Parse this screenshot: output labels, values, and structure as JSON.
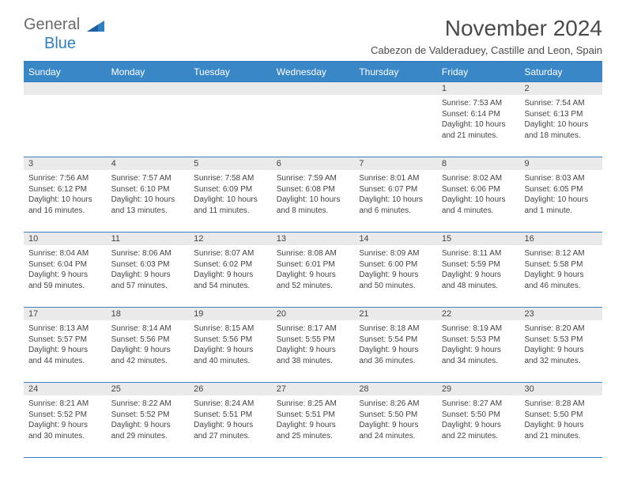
{
  "logo": {
    "text1": "General",
    "text2": "Blue"
  },
  "colors": {
    "headerBar": "#3a87c7",
    "borderBlue": "#3a7fbf",
    "dayStrip": "#eaeaea",
    "logoBlue": "#2f7fc2",
    "textGrey": "#4a4a4a"
  },
  "title": "November 2024",
  "subtitle": "Cabezon de Valderaduey, Castille and Leon, Spain",
  "weekdays": [
    "Sunday",
    "Monday",
    "Tuesday",
    "Wednesday",
    "Thursday",
    "Friday",
    "Saturday"
  ],
  "weeks": [
    {
      "nums": [
        "",
        "",
        "",
        "",
        "",
        "1",
        "2"
      ],
      "cells": [
        [],
        [],
        [],
        [],
        [],
        [
          "Sunrise: 7:53 AM",
          "Sunset: 6:14 PM",
          "Daylight: 10 hours",
          "and 21 minutes."
        ],
        [
          "Sunrise: 7:54 AM",
          "Sunset: 6:13 PM",
          "Daylight: 10 hours",
          "and 18 minutes."
        ]
      ]
    },
    {
      "nums": [
        "3",
        "4",
        "5",
        "6",
        "7",
        "8",
        "9"
      ],
      "cells": [
        [
          "Sunrise: 7:56 AM",
          "Sunset: 6:12 PM",
          "Daylight: 10 hours",
          "and 16 minutes."
        ],
        [
          "Sunrise: 7:57 AM",
          "Sunset: 6:10 PM",
          "Daylight: 10 hours",
          "and 13 minutes."
        ],
        [
          "Sunrise: 7:58 AM",
          "Sunset: 6:09 PM",
          "Daylight: 10 hours",
          "and 11 minutes."
        ],
        [
          "Sunrise: 7:59 AM",
          "Sunset: 6:08 PM",
          "Daylight: 10 hours",
          "and 8 minutes."
        ],
        [
          "Sunrise: 8:01 AM",
          "Sunset: 6:07 PM",
          "Daylight: 10 hours",
          "and 6 minutes."
        ],
        [
          "Sunrise: 8:02 AM",
          "Sunset: 6:06 PM",
          "Daylight: 10 hours",
          "and 4 minutes."
        ],
        [
          "Sunrise: 8:03 AM",
          "Sunset: 6:05 PM",
          "Daylight: 10 hours",
          "and 1 minute."
        ]
      ]
    },
    {
      "nums": [
        "10",
        "11",
        "12",
        "13",
        "14",
        "15",
        "16"
      ],
      "cells": [
        [
          "Sunrise: 8:04 AM",
          "Sunset: 6:04 PM",
          "Daylight: 9 hours",
          "and 59 minutes."
        ],
        [
          "Sunrise: 8:06 AM",
          "Sunset: 6:03 PM",
          "Daylight: 9 hours",
          "and 57 minutes."
        ],
        [
          "Sunrise: 8:07 AM",
          "Sunset: 6:02 PM",
          "Daylight: 9 hours",
          "and 54 minutes."
        ],
        [
          "Sunrise: 8:08 AM",
          "Sunset: 6:01 PM",
          "Daylight: 9 hours",
          "and 52 minutes."
        ],
        [
          "Sunrise: 8:09 AM",
          "Sunset: 6:00 PM",
          "Daylight: 9 hours",
          "and 50 minutes."
        ],
        [
          "Sunrise: 8:11 AM",
          "Sunset: 5:59 PM",
          "Daylight: 9 hours",
          "and 48 minutes."
        ],
        [
          "Sunrise: 8:12 AM",
          "Sunset: 5:58 PM",
          "Daylight: 9 hours",
          "and 46 minutes."
        ]
      ]
    },
    {
      "nums": [
        "17",
        "18",
        "19",
        "20",
        "21",
        "22",
        "23"
      ],
      "cells": [
        [
          "Sunrise: 8:13 AM",
          "Sunset: 5:57 PM",
          "Daylight: 9 hours",
          "and 44 minutes."
        ],
        [
          "Sunrise: 8:14 AM",
          "Sunset: 5:56 PM",
          "Daylight: 9 hours",
          "and 42 minutes."
        ],
        [
          "Sunrise: 8:15 AM",
          "Sunset: 5:56 PM",
          "Daylight: 9 hours",
          "and 40 minutes."
        ],
        [
          "Sunrise: 8:17 AM",
          "Sunset: 5:55 PM",
          "Daylight: 9 hours",
          "and 38 minutes."
        ],
        [
          "Sunrise: 8:18 AM",
          "Sunset: 5:54 PM",
          "Daylight: 9 hours",
          "and 36 minutes."
        ],
        [
          "Sunrise: 8:19 AM",
          "Sunset: 5:53 PM",
          "Daylight: 9 hours",
          "and 34 minutes."
        ],
        [
          "Sunrise: 8:20 AM",
          "Sunset: 5:53 PM",
          "Daylight: 9 hours",
          "and 32 minutes."
        ]
      ]
    },
    {
      "nums": [
        "24",
        "25",
        "26",
        "27",
        "28",
        "29",
        "30"
      ],
      "cells": [
        [
          "Sunrise: 8:21 AM",
          "Sunset: 5:52 PM",
          "Daylight: 9 hours",
          "and 30 minutes."
        ],
        [
          "Sunrise: 8:22 AM",
          "Sunset: 5:52 PM",
          "Daylight: 9 hours",
          "and 29 minutes."
        ],
        [
          "Sunrise: 8:24 AM",
          "Sunset: 5:51 PM",
          "Daylight: 9 hours",
          "and 27 minutes."
        ],
        [
          "Sunrise: 8:25 AM",
          "Sunset: 5:51 PM",
          "Daylight: 9 hours",
          "and 25 minutes."
        ],
        [
          "Sunrise: 8:26 AM",
          "Sunset: 5:50 PM",
          "Daylight: 9 hours",
          "and 24 minutes."
        ],
        [
          "Sunrise: 8:27 AM",
          "Sunset: 5:50 PM",
          "Daylight: 9 hours",
          "and 22 minutes."
        ],
        [
          "Sunrise: 8:28 AM",
          "Sunset: 5:50 PM",
          "Daylight: 9 hours",
          "and 21 minutes."
        ]
      ]
    }
  ]
}
